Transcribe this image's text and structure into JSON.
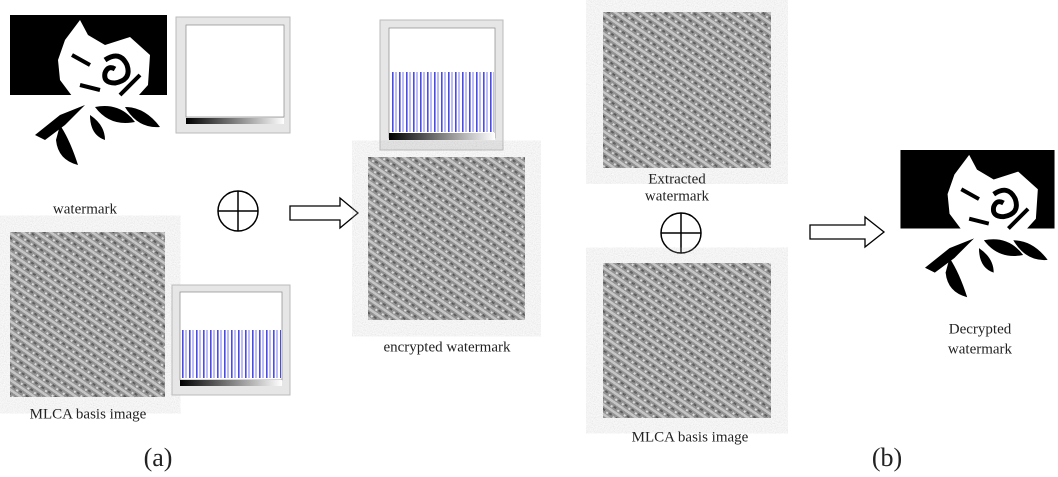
{
  "panel_a": {
    "watermark_label": "watermark",
    "basis_label": "MLCA basis image",
    "encrypted_label": "encrypted watermark",
    "caption": "(a)"
  },
  "panel_b": {
    "extracted_label": [
      "Extracted",
      "watermark"
    ],
    "basis_label": "MLCA basis image",
    "decrypted_label": [
      "Decrypted",
      "watermark"
    ],
    "caption": "(b)"
  }
}
